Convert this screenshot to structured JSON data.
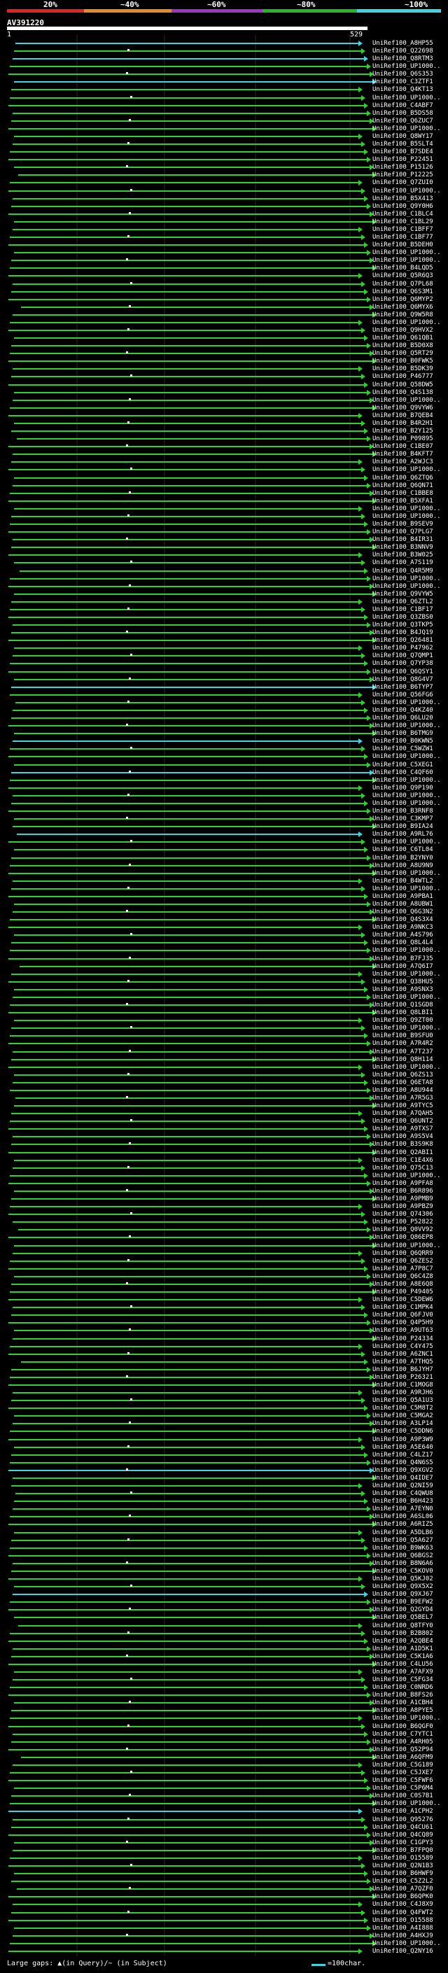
{
  "scale": {
    "labels": [
      "20%",
      "~40%",
      "~60%",
      "~80%",
      "~100%"
    ],
    "colors": [
      "#e0202a",
      "#e58a2a",
      "#9a35c4",
      "#27b32c",
      "#3fd5e0"
    ]
  },
  "title": "AV391220",
  "ruler": {
    "left_label": "1",
    "right_label": "529"
  },
  "colors": {
    "cyan": "#3fd5e0",
    "green": "#2fd12f",
    "bg": "#000000",
    "grid": "#2a2a2a"
  },
  "hits": [
    {
      "label": "UniRef100_A8HP55",
      "color": "cyan"
    },
    {
      "label": "UniRef100_Q22698",
      "color": "green"
    },
    {
      "label": "UniRef100_Q8RTM3",
      "color": "cyan"
    },
    {
      "label": "UniRef100_UP1000..",
      "color": "green"
    },
    {
      "label": "UniRef100_Q6S353",
      "color": "green"
    },
    {
      "label": "UniRef100_C3ZTF1",
      "color": "cyan"
    },
    {
      "label": "UniRef100_Q4KT13",
      "color": "green"
    },
    {
      "label": "UniRef100_UP1000..",
      "color": "green"
    },
    {
      "label": "UniRef100_C4ABF7",
      "color": "green"
    },
    {
      "label": "UniRef100_B5DS58",
      "color": "green"
    },
    {
      "label": "UniRef100_Q6ZUC7",
      "color": "green"
    },
    {
      "label": "UniRef100_UP1000..",
      "color": "green"
    },
    {
      "label": "UniRef100_Q8WY17",
      "color": "green"
    },
    {
      "label": "UniRef100_B5SLT4",
      "color": "green"
    },
    {
      "label": "UniRef100_B7SDE4",
      "color": "green"
    },
    {
      "label": "UniRef100_P22451",
      "color": "green"
    },
    {
      "label": "UniRef100_P15126",
      "color": "green"
    },
    {
      "label": "UniRef100_P12225",
      "color": "green"
    },
    {
      "label": "UniRef100_Q7ZUI0",
      "color": "green"
    },
    {
      "label": "UniRef100_UP1000..",
      "color": "green"
    },
    {
      "label": "UniRef100_B5X413",
      "color": "green"
    },
    {
      "label": "UniRef100_Q9Y0H6",
      "color": "green"
    },
    {
      "label": "UniRef100_C1BLC4",
      "color": "green"
    },
    {
      "label": "UniRef100_C1BL29",
      "color": "green"
    },
    {
      "label": "UniRef100_C1BFF7",
      "color": "green"
    },
    {
      "label": "UniRef100_C1BF77",
      "color": "green"
    },
    {
      "label": "UniRef100_B5DEH0",
      "color": "green"
    },
    {
      "label": "UniRef100_UP1000..",
      "color": "green"
    },
    {
      "label": "UniRef100_UP1000..",
      "color": "green"
    },
    {
      "label": "UniRef100_B4LQD5",
      "color": "green"
    },
    {
      "label": "UniRef100_Q5R6Q3",
      "color": "green"
    },
    {
      "label": "UniRef100_Q7PL68",
      "color": "green"
    },
    {
      "label": "UniRef100_Q6S3M1",
      "color": "green"
    },
    {
      "label": "UniRef100_Q6MYP2",
      "color": "green"
    },
    {
      "label": "UniRef100_Q6MYX6",
      "color": "green"
    },
    {
      "label": "UniRef100_Q9W5R8",
      "color": "green"
    },
    {
      "label": "UniRef100_UP1000..",
      "color": "green"
    },
    {
      "label": "UniRef100_Q9HVX2",
      "color": "green"
    },
    {
      "label": "UniRef100_Q61QB1",
      "color": "green"
    },
    {
      "label": "UniRef100_B5D0X8",
      "color": "green"
    },
    {
      "label": "UniRef100_Q5RT29",
      "color": "green"
    },
    {
      "label": "UniRef100_B0FWK5",
      "color": "green"
    },
    {
      "label": "UniRef100_B5DK39",
      "color": "green"
    },
    {
      "label": "UniRef100_P46777",
      "color": "green"
    },
    {
      "label": "UniRef100_Q58DW5",
      "color": "green"
    },
    {
      "label": "UniRef100_Q4S138",
      "color": "green"
    },
    {
      "label": "UniRef100_UP1000..",
      "color": "green"
    },
    {
      "label": "UniRef100_Q9VYW6",
      "color": "green"
    },
    {
      "label": "UniRef100_B7QEB4",
      "color": "green"
    },
    {
      "label": "UniRef100_B4R2H1",
      "color": "green"
    },
    {
      "label": "UniRef100_B2Y125",
      "color": "green"
    },
    {
      "label": "UniRef100_P09895",
      "color": "green"
    },
    {
      "label": "UniRef100_C1BE07",
      "color": "green"
    },
    {
      "label": "UniRef100_B4KFT7",
      "color": "green"
    },
    {
      "label": "UniRef100_A2WJC3",
      "color": "green"
    },
    {
      "label": "UniRef100_UP1000..",
      "color": "green"
    },
    {
      "label": "UniRef100_Q6ZTQ6",
      "color": "green"
    },
    {
      "label": "UniRef100_Q6QN71",
      "color": "green"
    },
    {
      "label": "UniRef100_C1BBE8",
      "color": "green"
    },
    {
      "label": "UniRef100_B5XFA1",
      "color": "green"
    },
    {
      "label": "UniRef100_UP1000..",
      "color": "green"
    },
    {
      "label": "UniRef100_UP1000..",
      "color": "green"
    },
    {
      "label": "UniRef100_B9SEV9",
      "color": "green"
    },
    {
      "label": "UniRef100_Q7PLG7",
      "color": "green"
    },
    {
      "label": "UniRef100_B4IR31",
      "color": "green"
    },
    {
      "label": "UniRef100_B3NNV9",
      "color": "green"
    },
    {
      "label": "UniRef100_B3W025",
      "color": "green"
    },
    {
      "label": "UniRef100_A7S119",
      "color": "green"
    },
    {
      "label": "UniRef100_Q4R5M9",
      "color": "green"
    },
    {
      "label": "UniRef100_UP1000..",
      "color": "green"
    },
    {
      "label": "UniRef100_UP1000..",
      "color": "green"
    },
    {
      "label": "UniRef100_Q9VYW5",
      "color": "green"
    },
    {
      "label": "UniRef100_Q6ZTL2",
      "color": "green"
    },
    {
      "label": "UniRef100_C1BF17",
      "color": "green"
    },
    {
      "label": "UniRef100_Q3ZBS0",
      "color": "green"
    },
    {
      "label": "UniRef100_Q3TKP5",
      "color": "green"
    },
    {
      "label": "UniRef100_B4JQ19",
      "color": "green"
    },
    {
      "label": "UniRef100_Q26481",
      "color": "green"
    },
    {
      "label": "UniRef100_P47962",
      "color": "green"
    },
    {
      "label": "UniRef100_Q7QMP1",
      "color": "green"
    },
    {
      "label": "UniRef100_Q7YP38",
      "color": "green"
    },
    {
      "label": "UniRef100_Q6QSY1",
      "color": "green"
    },
    {
      "label": "UniRef100_Q8G4V7",
      "color": "green"
    },
    {
      "label": "UniRef100_B6TYP7",
      "color": "cyan"
    },
    {
      "label": "UniRef100_Q56FG6",
      "color": "green"
    },
    {
      "label": "UniRef100_UP1000..",
      "color": "green"
    },
    {
      "label": "UniRef100_Q4KZ40",
      "color": "green"
    },
    {
      "label": "UniRef100_Q6LU20",
      "color": "green"
    },
    {
      "label": "UniRef100_UP1000..",
      "color": "green"
    },
    {
      "label": "UniRef100_B6TMG9",
      "color": "green"
    },
    {
      "label": "UniRef100_B0KWN5",
      "color": "cyan"
    },
    {
      "label": "UniRef100_C5WZW1",
      "color": "green"
    },
    {
      "label": "UniRef100_UP1000..",
      "color": "green"
    },
    {
      "label": "UniRef100_C5XEG1",
      "color": "green"
    },
    {
      "label": "UniRef100_C4QF60",
      "color": "cyan"
    },
    {
      "label": "UniRef100_UP1000..",
      "color": "green"
    },
    {
      "label": "UniRef100_Q9P190",
      "color": "green"
    },
    {
      "label": "UniRef100_UP1000..",
      "color": "green"
    },
    {
      "label": "UniRef100_UP1000..",
      "color": "green"
    },
    {
      "label": "UniRef100_B3RNF8",
      "color": "green"
    },
    {
      "label": "UniRef100_C3KMP7",
      "color": "green"
    },
    {
      "label": "UniRef100_B9IA24",
      "color": "green"
    },
    {
      "label": "UniRef100_A9RL76",
      "color": "cyan"
    },
    {
      "label": "UniRef100_UP1000..",
      "color": "green"
    },
    {
      "label": "UniRef100_C6TL04",
      "color": "green"
    },
    {
      "label": "UniRef100_B2YNY0",
      "color": "green"
    },
    {
      "label": "UniRef100_A8U9N9",
      "color": "green"
    },
    {
      "label": "UniRef100_UP1000..",
      "color": "green"
    },
    {
      "label": "UniRef100_B4WTL2",
      "color": "green"
    },
    {
      "label": "UniRef100_UP1000..",
      "color": "green"
    },
    {
      "label": "UniRef100_A9PBA1",
      "color": "green"
    },
    {
      "label": "UniRef100_A8UBW1",
      "color": "green"
    },
    {
      "label": "UniRef100_Q6G3N2",
      "color": "green"
    },
    {
      "label": "UniRef100_Q4S3X4",
      "color": "green"
    },
    {
      "label": "UniRef100_A9NKC3",
      "color": "green"
    },
    {
      "label": "UniRef100_A4S796",
      "color": "green"
    },
    {
      "label": "UniRef100_Q8L4L4",
      "color": "green"
    },
    {
      "label": "UniRef100_UP1000..",
      "color": "green"
    },
    {
      "label": "UniRef100_B7FJ35",
      "color": "green"
    },
    {
      "label": "UniRef100_A7Q6I7",
      "color": "green"
    },
    {
      "label": "UniRef100_UP1000..",
      "color": "green"
    },
    {
      "label": "UniRef100_Q38HU5",
      "color": "green"
    },
    {
      "label": "UniRef100_A9SNX3",
      "color": "green"
    },
    {
      "label": "UniRef100_UP1000..",
      "color": "green"
    },
    {
      "label": "UniRef100_Q1SGD8",
      "color": "green"
    },
    {
      "label": "UniRef100_Q8LBI1",
      "color": "green"
    },
    {
      "label": "UniRef100_Q9ZT00",
      "color": "green"
    },
    {
      "label": "UniRef100_UP1000..",
      "color": "green"
    },
    {
      "label": "UniRef100_B9SFU0",
      "color": "green"
    },
    {
      "label": "UniRef100_A7R4R2",
      "color": "green"
    },
    {
      "label": "UniRef100_A7T237",
      "color": "green"
    },
    {
      "label": "UniRef100_Q8H114",
      "color": "green"
    },
    {
      "label": "UniRef100_UP1000..",
      "color": "green"
    },
    {
      "label": "UniRef100_Q6ZS13",
      "color": "green"
    },
    {
      "label": "UniRef100_Q6ETA8",
      "color": "green"
    },
    {
      "label": "UniRef100_A8U944",
      "color": "green"
    },
    {
      "label": "UniRef100_A7R5G3",
      "color": "green"
    },
    {
      "label": "UniRef100_A9TYC5",
      "color": "green"
    },
    {
      "label": "UniRef100_A7QAH5",
      "color": "green"
    },
    {
      "label": "UniRef100_Q6UNT2",
      "color": "green"
    },
    {
      "label": "UniRef100_A9TXS7",
      "color": "green"
    },
    {
      "label": "UniRef100_A9S5V4",
      "color": "green"
    },
    {
      "label": "UniRef100_B3S9K8",
      "color": "green"
    },
    {
      "label": "UniRef100_Q2ABI1",
      "color": "green"
    },
    {
      "label": "UniRef100_C1E4X6",
      "color": "green"
    },
    {
      "label": "UniRef100_Q75C13",
      "color": "green"
    },
    {
      "label": "UniRef100_UP1000..",
      "color": "green"
    },
    {
      "label": "UniRef100_A9PFA8",
      "color": "green"
    },
    {
      "label": "UniRef100_B6R896",
      "color": "green"
    },
    {
      "label": "UniRef100_A9PMB9",
      "color": "green"
    },
    {
      "label": "UniRef100_A9PBZ9",
      "color": "green"
    },
    {
      "label": "UniRef100_Q74306",
      "color": "green"
    },
    {
      "label": "UniRef100_P52822",
      "color": "green"
    },
    {
      "label": "UniRef100_Q0VV92",
      "color": "green"
    },
    {
      "label": "UniRef100_Q86EP8",
      "color": "green"
    },
    {
      "label": "UniRef100_UP1000..",
      "color": "green"
    },
    {
      "label": "UniRef100_Q6QRR9",
      "color": "green"
    },
    {
      "label": "UniRef100_Q6ZES2",
      "color": "green"
    },
    {
      "label": "UniRef100_A7P8C7",
      "color": "green"
    },
    {
      "label": "UniRef100_Q6C4Z8",
      "color": "green"
    },
    {
      "label": "UniRef100_A8E6Q8",
      "color": "green"
    },
    {
      "label": "UniRef100_P49405",
      "color": "green"
    },
    {
      "label": "UniRef100_C5DEW6",
      "color": "green"
    },
    {
      "label": "UniRef100_C1MPK4",
      "color": "green"
    },
    {
      "label": "UniRef100_Q6FJV0",
      "color": "green"
    },
    {
      "label": "UniRef100_Q4P5H9",
      "color": "green"
    },
    {
      "label": "UniRef100_A9UT63",
      "color": "green"
    },
    {
      "label": "UniRef100_P24334",
      "color": "green"
    },
    {
      "label": "UniRef100_C4Y475",
      "color": "green"
    },
    {
      "label": "UniRef100_A6ZNC1",
      "color": "green"
    },
    {
      "label": "UniRef100_A7THQ5",
      "color": "green"
    },
    {
      "label": "UniRef100_B6JYH7",
      "color": "green"
    },
    {
      "label": "UniRef100_P26321",
      "color": "green"
    },
    {
      "label": "UniRef100_C1MOG8",
      "color": "green"
    },
    {
      "label": "UniRef100_A9RJH6",
      "color": "green"
    },
    {
      "label": "UniRef100_Q5A1U3",
      "color": "green"
    },
    {
      "label": "UniRef100_C5M8T2",
      "color": "green"
    },
    {
      "label": "UniRef100_C5MGA2",
      "color": "green"
    },
    {
      "label": "UniRef100_A3LP14",
      "color": "green"
    },
    {
      "label": "UniRef100_C5DDN6",
      "color": "green"
    },
    {
      "label": "UniRef100_A9P3W9",
      "color": "green"
    },
    {
      "label": "UniRef100_A5E640",
      "color": "green"
    },
    {
      "label": "UniRef100_C4LZ17",
      "color": "green"
    },
    {
      "label": "UniRef100_Q4N6S5",
      "color": "green"
    },
    {
      "label": "UniRef100_Q9XGV2",
      "color": "cyan"
    },
    {
      "label": "UniRef100_Q4IDE7",
      "color": "green"
    },
    {
      "label": "UniRef100_Q2NI59",
      "color": "green"
    },
    {
      "label": "UniRef100_C4QWU8",
      "color": "green"
    },
    {
      "label": "UniRef100_B6H423",
      "color": "green"
    },
    {
      "label": "UniRef100_A7EYN0",
      "color": "green"
    },
    {
      "label": "UniRef100_A6SL06",
      "color": "green"
    },
    {
      "label": "UniRef100_A6RIZ5",
      "color": "green"
    },
    {
      "label": "UniRef100_A5DLB6",
      "color": "green"
    },
    {
      "label": "UniRef100_Q5A627",
      "color": "green"
    },
    {
      "label": "UniRef100_B9WK63",
      "color": "green"
    },
    {
      "label": "UniRef100_Q6BGS2",
      "color": "green"
    },
    {
      "label": "UniRef100_B8N6A6",
      "color": "green"
    },
    {
      "label": "UniRef100_C5KOV0",
      "color": "green"
    },
    {
      "label": "UniRef100_Q5KJ02",
      "color": "green"
    },
    {
      "label": "UniRef100_Q9X5X2",
      "color": "green"
    },
    {
      "label": "UniRef100_Q9XJ67",
      "color": "cyan"
    },
    {
      "label": "UniRef100_B9EFW2",
      "color": "green"
    },
    {
      "label": "UniRef100_Q2GYD4",
      "color": "green"
    },
    {
      "label": "UniRef100_Q5BEL7",
      "color": "green"
    },
    {
      "label": "UniRef100_Q8TFY0",
      "color": "green"
    },
    {
      "label": "UniRef100_B2B802",
      "color": "green"
    },
    {
      "label": "UniRef100_A2QBE4",
      "color": "green"
    },
    {
      "label": "UniRef100_A1D5K1",
      "color": "green"
    },
    {
      "label": "UniRef100_C5K1A6",
      "color": "green"
    },
    {
      "label": "UniRef100_C4LU56",
      "color": "green"
    },
    {
      "label": "UniRef100_A7AFX9",
      "color": "green"
    },
    {
      "label": "UniRef100_C5FG34",
      "color": "green"
    },
    {
      "label": "UniRef100_C0NRD6",
      "color": "green"
    },
    {
      "label": "UniRef100_B8FS26",
      "color": "green"
    },
    {
      "label": "UniRef100_A1CBH4",
      "color": "green"
    },
    {
      "label": "UniRef100_A8PYE5",
      "color": "green"
    },
    {
      "label": "UniRef100_UP1000..",
      "color": "green"
    },
    {
      "label": "UniRef100_B6QGF0",
      "color": "green"
    },
    {
      "label": "UniRef100_C7YTC1",
      "color": "green"
    },
    {
      "label": "UniRef100_A4RH05",
      "color": "green"
    },
    {
      "label": "UniRef100_Q52P94",
      "color": "green"
    },
    {
      "label": "UniRef100_A6QFM9",
      "color": "green"
    },
    {
      "label": "UniRef100_C5G189",
      "color": "green"
    },
    {
      "label": "UniRef100_C5JXE7",
      "color": "green"
    },
    {
      "label": "UniRef100_C5FWF6",
      "color": "green"
    },
    {
      "label": "UniRef100_C5P6M4",
      "color": "green"
    },
    {
      "label": "UniRef100_C0S7B1",
      "color": "green"
    },
    {
      "label": "UniRef100_UP1000..",
      "color": "green"
    },
    {
      "label": "UniRef100_A1CPH2",
      "color": "cyan"
    },
    {
      "label": "UniRef100_Q95276",
      "color": "green"
    },
    {
      "label": "UniRef100_Q4CU61",
      "color": "green"
    },
    {
      "label": "UniRef100_Q4CQ89",
      "color": "green"
    },
    {
      "label": "UniRef100_C1GPY3",
      "color": "green"
    },
    {
      "label": "UniRef100_B7FPQ0",
      "color": "green"
    },
    {
      "label": "UniRef100_O15589",
      "color": "green"
    },
    {
      "label": "UniRef100_Q2N1B3",
      "color": "green"
    },
    {
      "label": "UniRef100_B6HWF9",
      "color": "green"
    },
    {
      "label": "UniRef100_C5Z2L2",
      "color": "green"
    },
    {
      "label": "UniRef100_A7QZF0",
      "color": "green"
    },
    {
      "label": "UniRef100_B6QPK0",
      "color": "green"
    },
    {
      "label": "UniRef100_C4J8X9",
      "color": "green"
    },
    {
      "label": "UniRef100_Q4FWT2",
      "color": "green"
    },
    {
      "label": "UniRef100_O15588",
      "color": "green"
    },
    {
      "label": "UniRef100_A4I888",
      "color": "green"
    },
    {
      "label": "UniRef100_A4HXJ9",
      "color": "green"
    },
    {
      "label": "UniRef100_UP1000..",
      "color": "green"
    },
    {
      "label": "UniRef100_Q2NY16",
      "color": "green"
    }
  ],
  "footer": {
    "large_gaps": "Large gaps: ▲(in Query)/~ (in Subject)",
    "legend": "=100char."
  }
}
